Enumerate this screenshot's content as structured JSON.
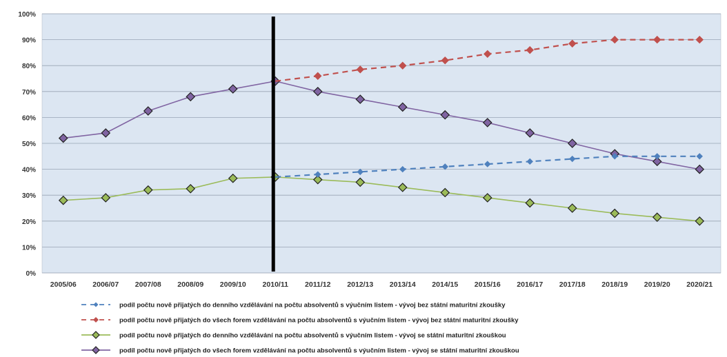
{
  "chart_data": {
    "type": "line",
    "title": "",
    "xlabel": "",
    "ylabel": "",
    "categories": [
      "2005/06",
      "2006/07",
      "2007/08",
      "2008/09",
      "2009/10",
      "2010/11",
      "2011/12",
      "2012/13",
      "2013/14",
      "2014/15",
      "2015/16",
      "2016/17",
      "2017/18",
      "2018/19",
      "2019/20",
      "2020/21"
    ],
    "ylim": [
      0,
      100
    ],
    "yticks": [
      0,
      10,
      20,
      30,
      40,
      50,
      60,
      70,
      80,
      90,
      100
    ],
    "ytick_labels": [
      "0%",
      "10%",
      "20%",
      "30%",
      "40%",
      "50%",
      "60%",
      "70%",
      "80%",
      "90%",
      "100%"
    ],
    "grid": "horizontal",
    "vertical_marker_category": "2010/11",
    "legend_position": "bottom",
    "series": [
      {
        "name": "podíl počtu nově přijatých do denního vzdělávání na počtu absolventů s výučním listem - vývoj bez státní maturitní zkoušky",
        "style": "dashed",
        "marker": "small-diamond",
        "color": "#4f81bd",
        "values": [
          null,
          null,
          null,
          null,
          null,
          37,
          38,
          39,
          40,
          41,
          42,
          43,
          44,
          45,
          45,
          45
        ]
      },
      {
        "name": "podíl počtu nově přijatých do všech forem vzdělávání na počtu absolventů s výučním listem - vývoj bez státní maturitní zkoušky",
        "style": "dashed",
        "marker": "diamond",
        "color": "#c0504d",
        "values": [
          null,
          null,
          null,
          null,
          null,
          74,
          76,
          78.5,
          80,
          82,
          84.5,
          86,
          88.5,
          90,
          90,
          90
        ]
      },
      {
        "name": "podíl počtu nově přijatých do denního vzdělávání na počtu absolventů s výučním listem - vývoj se státní maturitní zkouškou",
        "style": "solid",
        "marker": "diamond",
        "color": "#9bbb59",
        "values": [
          28,
          29,
          32,
          32.5,
          36.5,
          37,
          36,
          35,
          33,
          31,
          29,
          27,
          25,
          23,
          21.5,
          20
        ]
      },
      {
        "name": "podíl počtu nově přijatých do všech forem vzdělávání na počtu absolventů s výučním listem - vývoj se státní maturitní zkouškou",
        "style": "solid",
        "marker": "diamond",
        "color": "#8064a2",
        "values": [
          52,
          54,
          62.5,
          68,
          71,
          74,
          70,
          67,
          64,
          61,
          58,
          54,
          50,
          46,
          43,
          40
        ]
      }
    ]
  }
}
